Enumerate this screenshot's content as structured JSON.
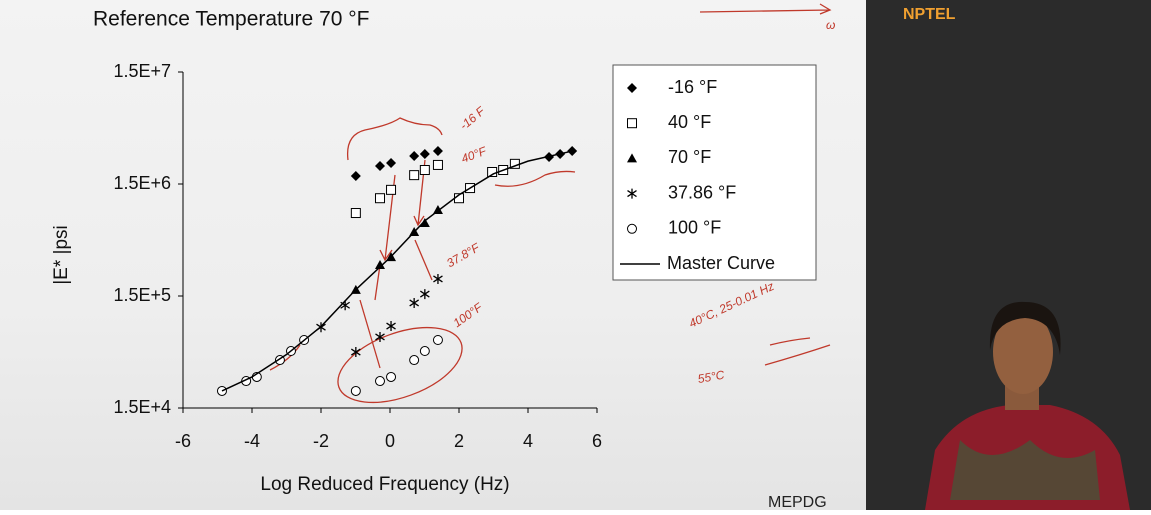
{
  "header": {
    "brand": "NPTEL",
    "footer": "MEPDG"
  },
  "chart_data": {
    "type": "scatter",
    "title": "Reference Temperature 70 °F",
    "x_label": "Log Reduced Frequency (Hz)",
    "y_label": "|E* |psi",
    "log_y": true,
    "grid": false,
    "legend": "upper right",
    "xlim": [
      -6,
      6
    ],
    "xticks": [
      -6,
      -4,
      -2,
      0,
      2,
      4,
      6
    ],
    "ylim": [
      15000,
      15000000
    ],
    "yticks": [
      {
        "value": 15000,
        "label": "1.5E+4"
      },
      {
        "value": 150000,
        "label": "1.5E+5"
      },
      {
        "value": 1500000,
        "label": "1.5E+6"
      },
      {
        "value": 15000000,
        "label": "1.5E+7"
      }
    ],
    "series": [
      {
        "name": "-16 °F",
        "marker": "diamond",
        "color": "#000000",
        "x": [
          -0.99,
          -0.29,
          0.03,
          0.7,
          1.01,
          1.39,
          4.61,
          4.93,
          5.28
        ],
        "values": [
          1770000,
          2170000,
          2310000,
          2670000,
          2780000,
          2960000,
          2610000,
          2780000,
          2960000
        ]
      },
      {
        "name": "40 °F",
        "marker": "square",
        "color": "#000000",
        "x": [
          -0.99,
          -0.29,
          0.03,
          0.7,
          1.01,
          1.39,
          2.0,
          2.32,
          2.96,
          3.28,
          3.62
        ],
        "values": [
          826000,
          1120000,
          1330000,
          1800000,
          2000000,
          2220000,
          1120000,
          1380000,
          1920000,
          2000000,
          2270000
        ]
      },
      {
        "name": "70 °F",
        "marker": "triangle",
        "color": "#000000",
        "x": [
          -0.99,
          -0.29,
          0.03,
          0.7,
          1.01,
          1.39
        ],
        "values": [
          170000,
          284000,
          334000,
          559000,
          673000,
          879000
        ]
      },
      {
        "name": "37.86 °F",
        "marker": "asterisk",
        "color": "#000000",
        "x": [
          -2.0,
          -1.3,
          -0.99,
          -0.29,
          0.03,
          0.7,
          1.01,
          1.39
        ],
        "values": [
          79000,
          124000,
          47400,
          64600,
          80900,
          130000,
          156000,
          213000
        ]
      },
      {
        "name": "100 °F",
        "marker": "circle",
        "color": "#000000",
        "x": [
          -4.87,
          -4.17,
          -3.86,
          -3.19,
          -2.87,
          -2.49,
          -0.99,
          -0.29,
          0.03,
          0.7,
          1.01,
          1.39
        ],
        "values": [
          21300,
          26100,
          28400,
          40200,
          48400,
          60700,
          21300,
          26100,
          28400,
          40200,
          48400,
          60700
        ]
      },
      {
        "name": "Master Curve",
        "marker": "line",
        "color": "#000000",
        "x": [
          -4.87,
          -4,
          -3,
          -2,
          -1,
          0,
          1,
          2,
          3,
          4,
          5.3
        ],
        "values": [
          21300,
          28400,
          45000,
          80000,
          170000,
          330000,
          700000,
          1200000,
          1850000,
          2400000,
          2960000
        ]
      }
    ],
    "annotations": [
      {
        "text": "-16 F",
        "color": "#c0392b"
      },
      {
        "text": "40°F",
        "color": "#c0392b"
      },
      {
        "text": "37.8°F",
        "color": "#c0392b"
      },
      {
        "text": "100°F",
        "color": "#c0392b"
      },
      {
        "text": "40°C, 25-0.01 Hz",
        "color": "#c0392b"
      },
      {
        "text": "55°C",
        "color": "#c0392b"
      },
      {
        "text": "ω",
        "color": "#c0392b"
      }
    ]
  }
}
